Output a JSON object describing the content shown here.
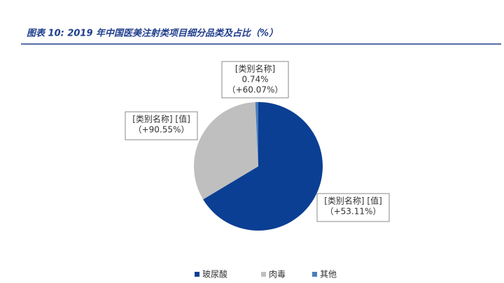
{
  "chart_data": {
    "type": "pie",
    "title": "图表 10:  2019 年中国医美注射类项目细分品类及占比（%）",
    "categories": [
      "玻尿酸",
      "肉毒",
      "其他"
    ],
    "values": [
      66.4,
      32.86,
      0.74
    ],
    "value_labels": [
      null,
      null,
      "0.74%"
    ],
    "colors": [
      "#0b3f93",
      "#bfbfbf",
      "#4a7dbd"
    ],
    "data_labels": [
      [
        "[类别名称] [值]",
        "（+53.11%）"
      ],
      [
        "[类别名称] [值]",
        "（+90.55%）"
      ],
      [
        "[类别名称]",
        "（+60.07%）"
      ]
    ],
    "legend": "bottom"
  }
}
